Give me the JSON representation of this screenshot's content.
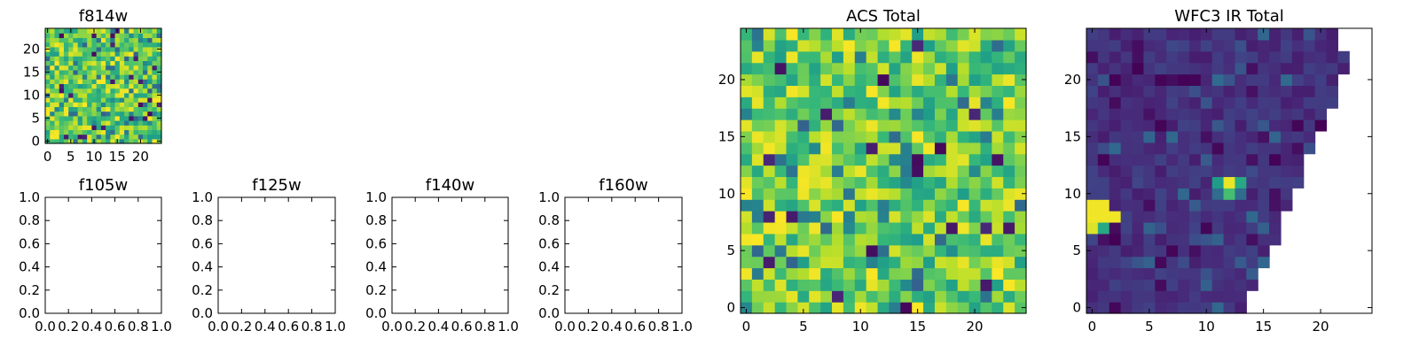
{
  "chart_data": [
    {
      "type": "heatmap",
      "title": "f814w",
      "colormap": "viridis",
      "xticks": [
        0,
        5,
        10,
        15,
        20
      ],
      "yticks": [
        0,
        5,
        10,
        15,
        20
      ],
      "xlim": [
        -0.5,
        24.5
      ],
      "ylim": [
        -0.5,
        24.5
      ],
      "grid_size": [
        25,
        25
      ],
      "grid": false
    },
    {
      "type": "heatmap",
      "title": "ACS Total",
      "colormap": "viridis",
      "xticks": [
        0,
        5,
        10,
        15,
        20
      ],
      "yticks": [
        0,
        5,
        10,
        15,
        20
      ],
      "xlim": [
        -0.5,
        24.5
      ],
      "ylim": [
        -0.5,
        24.5
      ],
      "grid_size": [
        25,
        25
      ],
      "grid": false
    },
    {
      "type": "heatmap",
      "title": "WFC3 IR Total",
      "colormap": "viridis",
      "xticks": [
        0,
        5,
        10,
        15,
        20
      ],
      "yticks": [
        0,
        5,
        10,
        15,
        20
      ],
      "xlim": [
        -0.5,
        24.5
      ],
      "ylim": [
        -0.5,
        24.5
      ],
      "grid_size": [
        25,
        25
      ],
      "grid": false,
      "notes_visible": "upper-right triangle is blank (no data); bright spots near (0-2, 8-9) and (11-13, 10-11)"
    },
    {
      "type": "line",
      "title": "f105w",
      "xlim": [
        0.0,
        1.0
      ],
      "ylim": [
        0.0,
        1.0
      ],
      "xticks": [
        "0.0",
        "0.2",
        "0.4",
        "0.6",
        "0.8",
        "1.0"
      ],
      "yticks": [
        "0.0",
        "0.2",
        "0.4",
        "0.6",
        "0.8",
        "1.0"
      ],
      "series": []
    },
    {
      "type": "line",
      "title": "f125w",
      "xlim": [
        0.0,
        1.0
      ],
      "ylim": [
        0.0,
        1.0
      ],
      "xticks": [
        "0.0",
        "0.2",
        "0.4",
        "0.6",
        "0.8",
        "1.0"
      ],
      "yticks": [
        "0.0",
        "0.2",
        "0.4",
        "0.6",
        "0.8",
        "1.0"
      ],
      "series": []
    },
    {
      "type": "line",
      "title": "f140w",
      "xlim": [
        0.0,
        1.0
      ],
      "ylim": [
        0.0,
        1.0
      ],
      "xticks": [
        "0.0",
        "0.2",
        "0.4",
        "0.6",
        "0.8",
        "1.0"
      ],
      "yticks": [
        "0.0",
        "0.2",
        "0.4",
        "0.6",
        "0.8",
        "1.0"
      ],
      "series": []
    },
    {
      "type": "line",
      "title": "f160w",
      "xlim": [
        0.0,
        1.0
      ],
      "ylim": [
        0.0,
        1.0
      ],
      "xticks": [
        "0.0",
        "0.2",
        "0.4",
        "0.6",
        "0.8",
        "1.0"
      ],
      "yticks": [
        "0.0",
        "0.2",
        "0.4",
        "0.6",
        "0.8",
        "1.0"
      ],
      "series": []
    }
  ]
}
